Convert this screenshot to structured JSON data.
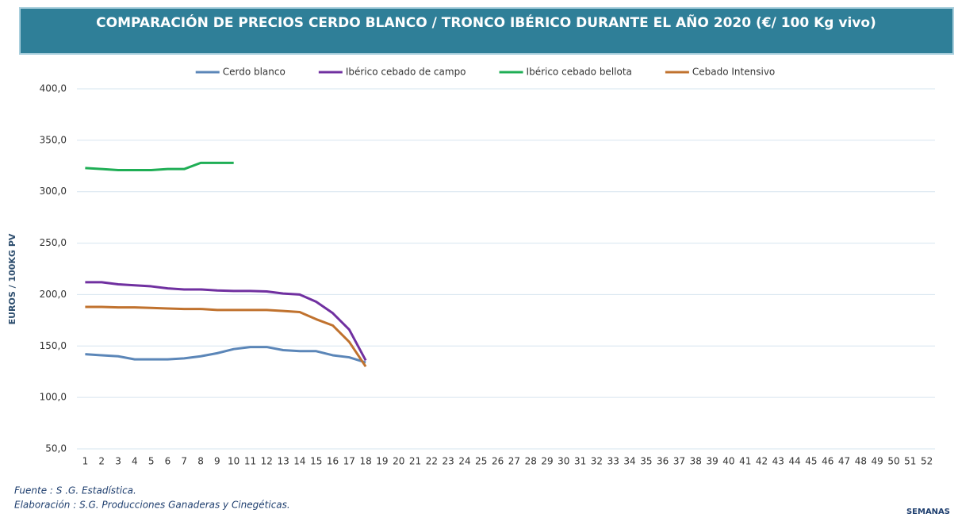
{
  "chart_data": {
    "type": "line",
    "title": "COMPARACIÓN DE PRECIOS CERDO BLANCO / TRONCO IBÉRICO DURANTE EL AÑO 2020 (€/ 100 Kg vivo)",
    "ylabel": "EUROS / 100KG PV",
    "xlabel": "SEMANAS",
    "footer": [
      "Fuente :  S .G. Estadística.",
      "Elaboración : S.G. Producciones Ganaderas y Cinegéticas."
    ],
    "categories": [
      "1",
      "2",
      "3",
      "4",
      "5",
      "6",
      "7",
      "8",
      "9",
      "10",
      "11",
      "12",
      "13",
      "14",
      "15",
      "16",
      "17",
      "18",
      "19",
      "20",
      "21",
      "22",
      "23",
      "24",
      "25",
      "26",
      "27",
      "28",
      "29",
      "30",
      "31",
      "32",
      "33",
      "34",
      "35",
      "36",
      "37",
      "38",
      "39",
      "40",
      "41",
      "42",
      "43",
      "44",
      "45",
      "46",
      "47",
      "48",
      "49",
      "50",
      "51",
      "52"
    ],
    "series": [
      {
        "name": "Cerdo blanco",
        "color": "#5b86b8",
        "values": [
          142,
          141,
          140,
          137,
          137,
          137,
          138,
          140,
          143,
          147,
          149,
          149,
          146,
          145,
          145,
          141,
          139,
          134,
          null,
          null,
          null,
          null,
          null,
          null,
          null,
          null,
          null,
          null,
          null,
          null,
          null,
          null,
          null,
          null,
          null,
          null,
          null,
          null,
          null,
          null,
          null,
          null,
          null,
          null,
          null,
          null,
          null,
          null,
          null,
          null,
          null,
          null
        ]
      },
      {
        "name": "Ibérico cebado de campo",
        "color": "#7030a0",
        "values": [
          212,
          212,
          210,
          209,
          208,
          206,
          205,
          205,
          204,
          203.5,
          203.5,
          203,
          201,
          200,
          193,
          182,
          166,
          136,
          null,
          null,
          null,
          null,
          null,
          null,
          null,
          null,
          null,
          null,
          null,
          null,
          null,
          null,
          null,
          null,
          null,
          null,
          null,
          null,
          null,
          null,
          null,
          null,
          null,
          null,
          null,
          null,
          null,
          null,
          null,
          null,
          null,
          null
        ]
      },
      {
        "name": "Ibérico cebado bellota",
        "color": "#1fae55",
        "values": [
          323,
          322,
          321,
          321,
          321,
          322,
          322,
          328,
          328,
          328,
          null,
          null,
          null,
          null,
          null,
          null,
          null,
          null,
          null,
          null,
          null,
          null,
          null,
          null,
          null,
          null,
          null,
          null,
          null,
          null,
          null,
          null,
          null,
          null,
          null,
          null,
          null,
          null,
          null,
          null,
          null,
          null,
          null,
          null,
          null,
          null,
          null,
          null,
          null,
          null,
          null,
          null
        ]
      },
      {
        "name": "Cebado Intensivo",
        "color": "#c0722e",
        "values": [
          188,
          188,
          187.5,
          187.5,
          187,
          186.5,
          186,
          186,
          185,
          185,
          185,
          185,
          184,
          183,
          176,
          170,
          154,
          130,
          null,
          null,
          null,
          null,
          null,
          null,
          null,
          null,
          null,
          null,
          null,
          null,
          null,
          null,
          null,
          null,
          null,
          null,
          null,
          null,
          null,
          null,
          null,
          null,
          null,
          null,
          null,
          null,
          null,
          null,
          null,
          null,
          null,
          null
        ]
      }
    ],
    "ylim": [
      50,
      400
    ],
    "yticks": [
      {
        "value": 50,
        "label": "50,0"
      },
      {
        "value": 100,
        "label": "100,0"
      },
      {
        "value": 150,
        "label": "150,0"
      },
      {
        "value": 200,
        "label": "200,0"
      },
      {
        "value": 250,
        "label": "250,0"
      },
      {
        "value": 300,
        "label": "300,0"
      },
      {
        "value": 350,
        "label": "350,0"
      },
      {
        "value": 400,
        "label": "400,0"
      }
    ],
    "grid": true,
    "legend": "top"
  }
}
